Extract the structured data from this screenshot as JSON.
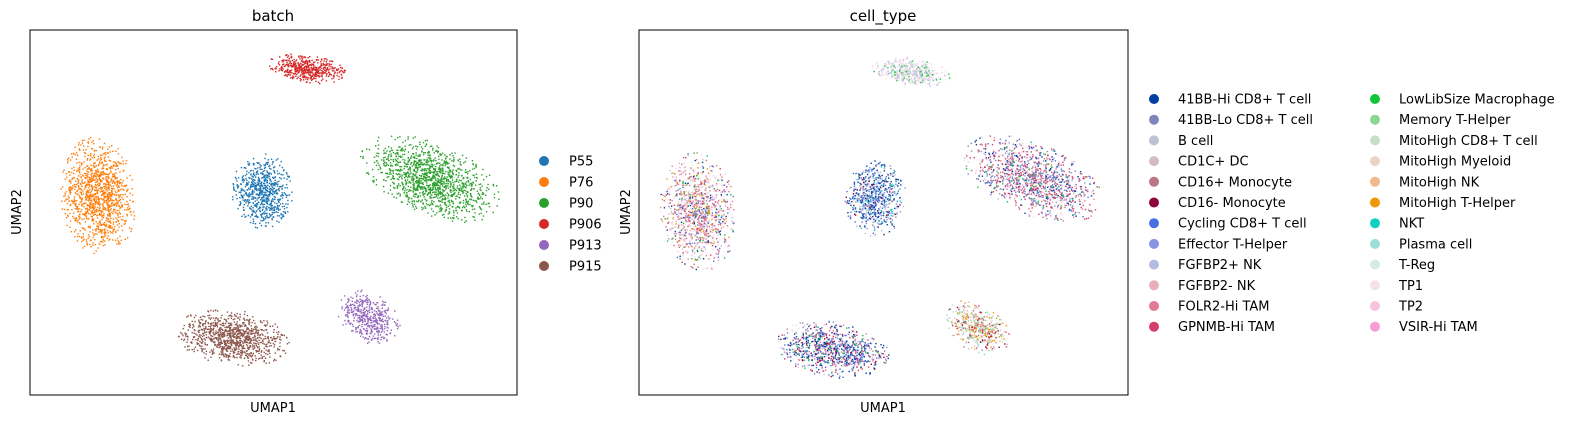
{
  "chart_data": [
    {
      "type": "scatter",
      "title": "batch",
      "xlabel": "UMAP1",
      "ylabel": "UMAP2",
      "grid": false,
      "legend_position": "right",
      "series": [
        {
          "name": "P55",
          "color": "#1f77b4",
          "cluster": {
            "cx": 4.2,
            "cy": 5.0,
            "shape": "blob"
          }
        },
        {
          "name": "P76",
          "color": "#ff7f0e",
          "cluster": {
            "cx": 1.2,
            "cy": 5.0,
            "shape": "elongated"
          }
        },
        {
          "name": "P90",
          "color": "#2ca02c",
          "cluster": {
            "cx": 7.8,
            "cy": 5.9,
            "shape": "wedge"
          }
        },
        {
          "name": "P906",
          "color": "#d62728",
          "cluster": {
            "cx": 5.5,
            "cy": 8.4,
            "shape": "blob"
          }
        },
        {
          "name": "P913",
          "color": "#9467bd",
          "cluster": {
            "cx": 7.1,
            "cy": 2.6,
            "shape": "blob"
          }
        },
        {
          "name": "P915",
          "color": "#8c564b",
          "cluster": {
            "cx": 4.2,
            "cy": 1.8,
            "shape": "blob"
          }
        }
      ]
    },
    {
      "type": "scatter",
      "title": "cell_type",
      "xlabel": "UMAP1",
      "ylabel": "UMAP2",
      "grid": false,
      "legend_position": "right",
      "series": [
        {
          "name": "41BB-Hi CD8+ T cell",
          "color": "#023fa5"
        },
        {
          "name": "41BB-Lo CD8+ T cell",
          "color": "#7d87b9"
        },
        {
          "name": "B cell",
          "color": "#bec1d4"
        },
        {
          "name": "CD1C+ DC",
          "color": "#d6bcc0"
        },
        {
          "name": "CD16+ Monocyte",
          "color": "#bb7784"
        },
        {
          "name": "CD16- Monocyte",
          "color": "#8e063b"
        },
        {
          "name": "Cycling CD8+ T cell",
          "color": "#4a6fe3"
        },
        {
          "name": "Effector T-Helper",
          "color": "#8595e1"
        },
        {
          "name": "FGFBP2+ NK",
          "color": "#b5bbe3"
        },
        {
          "name": "FGFBP2- NK",
          "color": "#e6afb9"
        },
        {
          "name": "FOLR2-Hi TAM",
          "color": "#e07b91"
        },
        {
          "name": "GPNMB-Hi TAM",
          "color": "#d33f6a"
        },
        {
          "name": "LowLibSize Macrophage",
          "color": "#11c638"
        },
        {
          "name": "Memory T-Helper",
          "color": "#8dd593"
        },
        {
          "name": "MitoHigh CD8+ T cell",
          "color": "#c6dec7"
        },
        {
          "name": "MitoHigh Myeloid",
          "color": "#ead3c6"
        },
        {
          "name": "MitoHigh NK",
          "color": "#f0b98d"
        },
        {
          "name": "MitoHigh T-Helper",
          "color": "#ef9708"
        },
        {
          "name": "NKT",
          "color": "#0fcfc0"
        },
        {
          "name": "Plasma cell",
          "color": "#9cded6"
        },
        {
          "name": "T-Reg",
          "color": "#d5eae7"
        },
        {
          "name": "TP1",
          "color": "#f3e1eb"
        },
        {
          "name": "TP2",
          "color": "#f6c4e1"
        },
        {
          "name": "VSIR-Hi TAM",
          "color": "#f79cd4"
        }
      ]
    }
  ]
}
